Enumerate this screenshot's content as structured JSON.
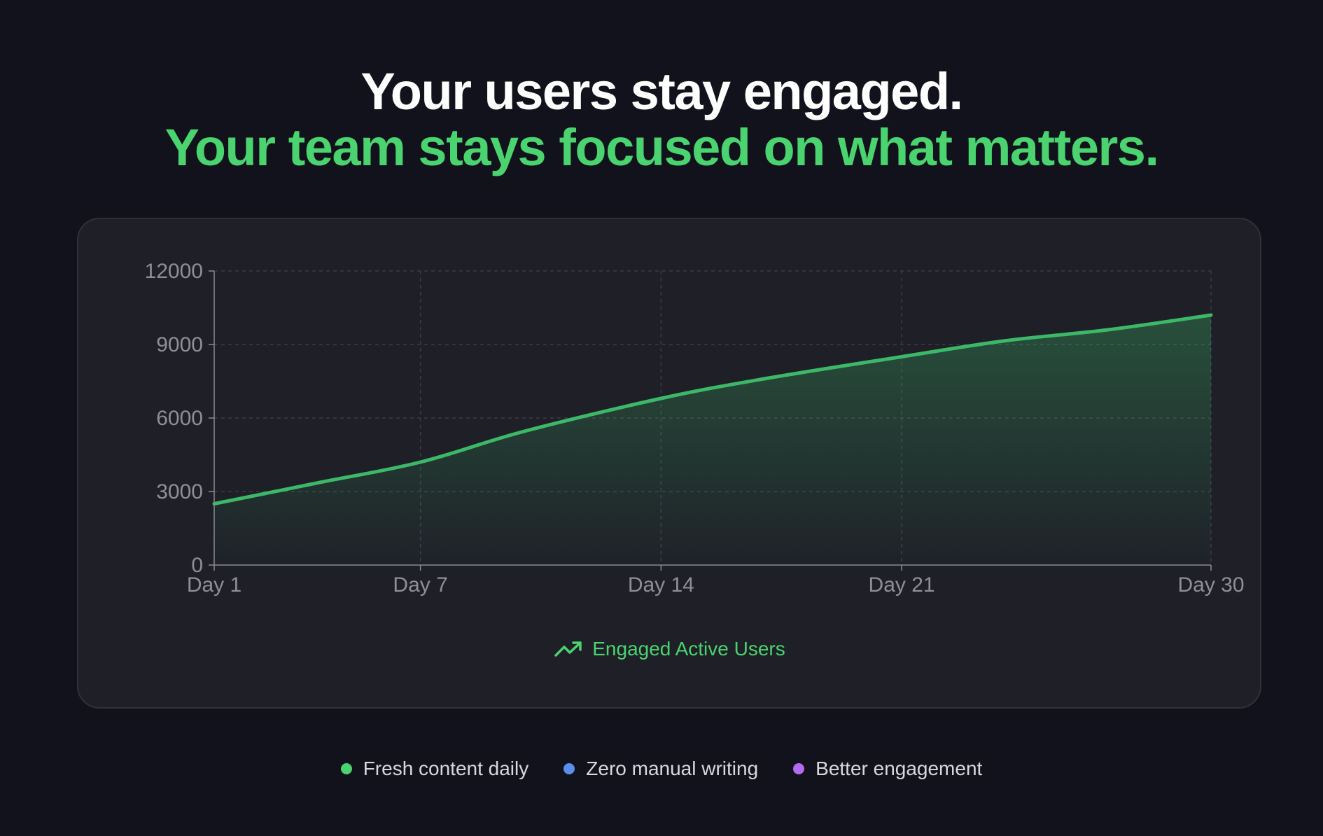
{
  "headline": {
    "line1": "Your users stay engaged.",
    "line2": "Your team stays focused on what matters."
  },
  "colors": {
    "background": "#11121b",
    "card": "#1e1f27",
    "accent": "#4ad36f",
    "line": "#3cb868",
    "blue": "#5b8def",
    "purple": "#b46af2"
  },
  "chart_data": {
    "type": "area",
    "categories": [
      "Day 1",
      "Day 7",
      "Day 14",
      "Day 21",
      "Day 30"
    ],
    "x": [
      1,
      7,
      14,
      21,
      30
    ],
    "series": [
      {
        "name": "Engaged Active Users",
        "icon": "trending-up-icon",
        "x": [
          1,
          4,
          7,
          10,
          14,
          17,
          21,
          24,
          27,
          30
        ],
        "values": [
          2500,
          3350,
          4200,
          5450,
          6800,
          7600,
          8500,
          9150,
          9600,
          10200
        ]
      }
    ],
    "ylim": [
      0,
      12000
    ],
    "yticks": [
      0,
      3000,
      6000,
      9000,
      12000
    ],
    "grid": true,
    "legend_position": "bottom-center"
  },
  "features": [
    {
      "label": "Fresh content daily",
      "color": "#4ad36f"
    },
    {
      "label": "Zero manual writing",
      "color": "#5b8def"
    },
    {
      "label": "Better engagement",
      "color": "#b46af2"
    }
  ]
}
